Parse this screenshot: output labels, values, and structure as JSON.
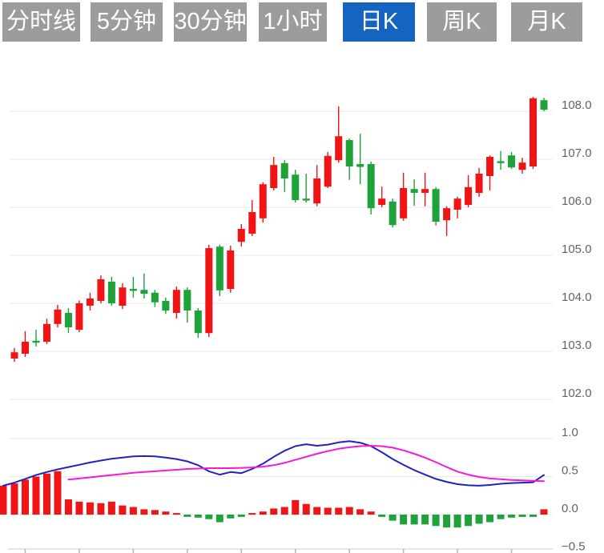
{
  "tabs": {
    "items": [
      {
        "label": "分时线",
        "selected": false
      },
      {
        "label": "5分钟",
        "selected": false
      },
      {
        "label": "30分钟",
        "selected": false
      },
      {
        "label": "1小时",
        "selected": false
      },
      {
        "label": "日K",
        "selected": true
      },
      {
        "label": "周K",
        "selected": false
      },
      {
        "label": "月K",
        "selected": false
      }
    ],
    "selected_color": "#1565c0",
    "unselected_color": "#9c9c9c"
  },
  "colors": {
    "up_candle": "#f01414",
    "down_candle": "#1ea33a",
    "dif_line": "#2122c4",
    "dea_line": "#f31bd3",
    "grid": "#e8e8e8",
    "axis_text": "#5f6369",
    "axis_line": "#dcdfe4",
    "axis_tick": "#aeb6c2",
    "background": "#ffffff"
  },
  "chart_data": {
    "type": "candlestick+macd",
    "title": "",
    "grid": true,
    "legend": false,
    "price_panel": {
      "ylim": [
        102.0,
        108.5
      ],
      "tick_values": [
        108.0,
        107.0,
        106.0,
        105.0,
        104.0,
        103.0,
        102.0
      ],
      "tick_labels": [
        "108.0",
        "107.0",
        "106.0",
        "105.0",
        "104.0",
        "103.0",
        "102.0"
      ]
    },
    "indicator_panel": {
      "ylim": [
        -0.5,
        1.0
      ],
      "gridline_values": [
        1.0,
        0.5,
        0.0
      ],
      "tick_values": [
        1.0,
        0.5,
        0.0,
        -0.5
      ],
      "tick_labels": [
        "1.0",
        "0.5",
        "0.0",
        "−0.5"
      ]
    },
    "x_axis": {
      "labels_visible": false,
      "tick_candle_indices": [
        1,
        6,
        11,
        16,
        21,
        26,
        31,
        36,
        41,
        46
      ]
    },
    "candle_format": [
      "open",
      "close",
      "high",
      "low"
    ],
    "candles": [
      [
        102.85,
        102.98,
        103.07,
        102.78
      ],
      [
        102.95,
        103.2,
        103.42,
        102.88
      ],
      [
        103.22,
        103.18,
        103.45,
        103.1
      ],
      [
        103.2,
        103.57,
        103.68,
        103.15
      ],
      [
        103.57,
        103.87,
        103.97,
        103.5
      ],
      [
        103.8,
        103.5,
        103.9,
        103.38
      ],
      [
        103.45,
        104.0,
        104.06,
        103.4
      ],
      [
        103.95,
        104.1,
        104.22,
        103.85
      ],
      [
        104.05,
        104.5,
        104.58,
        104.0
      ],
      [
        104.45,
        104.0,
        104.55,
        103.95
      ],
      [
        103.95,
        104.33,
        104.42,
        103.88
      ],
      [
        104.3,
        104.26,
        104.55,
        104.12
      ],
      [
        104.28,
        104.2,
        104.62,
        104.1
      ],
      [
        104.22,
        104.02,
        104.28,
        103.92
      ],
      [
        104.05,
        103.85,
        104.12,
        103.78
      ],
      [
        103.8,
        104.28,
        104.35,
        103.68
      ],
      [
        104.28,
        103.85,
        104.33,
        103.6
      ],
      [
        103.85,
        103.38,
        103.9,
        103.28
      ],
      [
        103.38,
        105.15,
        105.22,
        103.3
      ],
      [
        105.18,
        104.27,
        105.22,
        104.15
      ],
      [
        104.3,
        105.1,
        105.2,
        104.22
      ],
      [
        105.28,
        105.55,
        105.65,
        105.18
      ],
      [
        105.45,
        105.9,
        106.15,
        105.4
      ],
      [
        105.77,
        106.48,
        106.52,
        105.68
      ],
      [
        106.4,
        106.88,
        107.05,
        106.35
      ],
      [
        106.92,
        106.6,
        106.98,
        106.32
      ],
      [
        106.68,
        106.15,
        106.78,
        106.1
      ],
      [
        106.18,
        106.14,
        106.7,
        106.1
      ],
      [
        106.08,
        106.6,
        106.88,
        106.02
      ],
      [
        106.43,
        107.07,
        107.15,
        106.4
      ],
      [
        106.98,
        107.48,
        108.1,
        106.93
      ],
      [
        107.4,
        106.85,
        107.43,
        106.57
      ],
      [
        106.9,
        106.84,
        107.53,
        106.48
      ],
      [
        106.9,
        105.98,
        106.95,
        105.85
      ],
      [
        106.05,
        106.18,
        106.43,
        106.0
      ],
      [
        106.12,
        105.63,
        106.18,
        105.58
      ],
      [
        105.77,
        106.4,
        106.72,
        105.72
      ],
      [
        106.38,
        106.3,
        106.58,
        106.03
      ],
      [
        106.3,
        106.38,
        106.72,
        106.02
      ],
      [
        106.38,
        105.7,
        106.42,
        105.62
      ],
      [
        105.73,
        105.98,
        106.02,
        105.4
      ],
      [
        105.95,
        106.18,
        106.22,
        105.77
      ],
      [
        106.05,
        106.42,
        106.67,
        106.0
      ],
      [
        106.3,
        106.7,
        106.82,
        106.22
      ],
      [
        106.65,
        107.05,
        107.08,
        106.35
      ],
      [
        106.96,
        106.92,
        107.17,
        106.78
      ],
      [
        107.08,
        106.83,
        107.15,
        106.8
      ],
      [
        106.78,
        106.93,
        107.03,
        106.7
      ],
      [
        106.85,
        108.27,
        108.3,
        106.8
      ],
      [
        108.23,
        108.03,
        108.28,
        108.0
      ]
    ],
    "macd": {
      "edge_bar_value": 0.38,
      "dif_edge_value": 0.38,
      "hist": [
        0.41,
        0.46,
        0.5,
        0.54,
        0.57,
        0.2,
        0.17,
        0.16,
        0.15,
        0.17,
        0.12,
        0.1,
        0.07,
        0.06,
        0.04,
        0.02,
        -0.03,
        -0.04,
        -0.06,
        -0.1,
        -0.05,
        -0.03,
        0.02,
        0.04,
        0.08,
        0.1,
        0.19,
        0.14,
        0.1,
        0.09,
        0.09,
        0.1,
        0.07,
        0.04,
        -0.03,
        -0.08,
        -0.13,
        -0.13,
        -0.13,
        -0.15,
        -0.17,
        -0.17,
        -0.15,
        -0.12,
        -0.1,
        -0.06,
        -0.04,
        -0.03,
        -0.03,
        0.07
      ],
      "dif": [
        0.42,
        0.47,
        0.52,
        0.56,
        0.595,
        0.625,
        0.655,
        0.685,
        0.71,
        0.735,
        0.75,
        0.765,
        0.77,
        0.765,
        0.75,
        0.73,
        0.7,
        0.65,
        0.57,
        0.525,
        0.56,
        0.545,
        0.6,
        0.67,
        0.76,
        0.84,
        0.9,
        0.925,
        0.905,
        0.92,
        0.95,
        0.965,
        0.945,
        0.9,
        0.82,
        0.73,
        0.655,
        0.585,
        0.525,
        0.47,
        0.43,
        0.4,
        0.385,
        0.38,
        0.39,
        0.405,
        0.415,
        0.42,
        0.425,
        0.52
      ],
      "dea": [
        null,
        null,
        null,
        null,
        null,
        0.46,
        0.475,
        0.49,
        0.505,
        0.52,
        0.535,
        0.55,
        0.56,
        0.57,
        0.58,
        0.59,
        0.6,
        0.605,
        0.61,
        0.61,
        0.61,
        0.615,
        0.62,
        0.63,
        0.65,
        0.68,
        0.72,
        0.76,
        0.8,
        0.835,
        0.865,
        0.885,
        0.9,
        0.905,
        0.9,
        0.88,
        0.845,
        0.8,
        0.75,
        0.69,
        0.625,
        0.565,
        0.525,
        0.495,
        0.475,
        0.465,
        0.455,
        0.45,
        0.445,
        0.44
      ]
    }
  }
}
